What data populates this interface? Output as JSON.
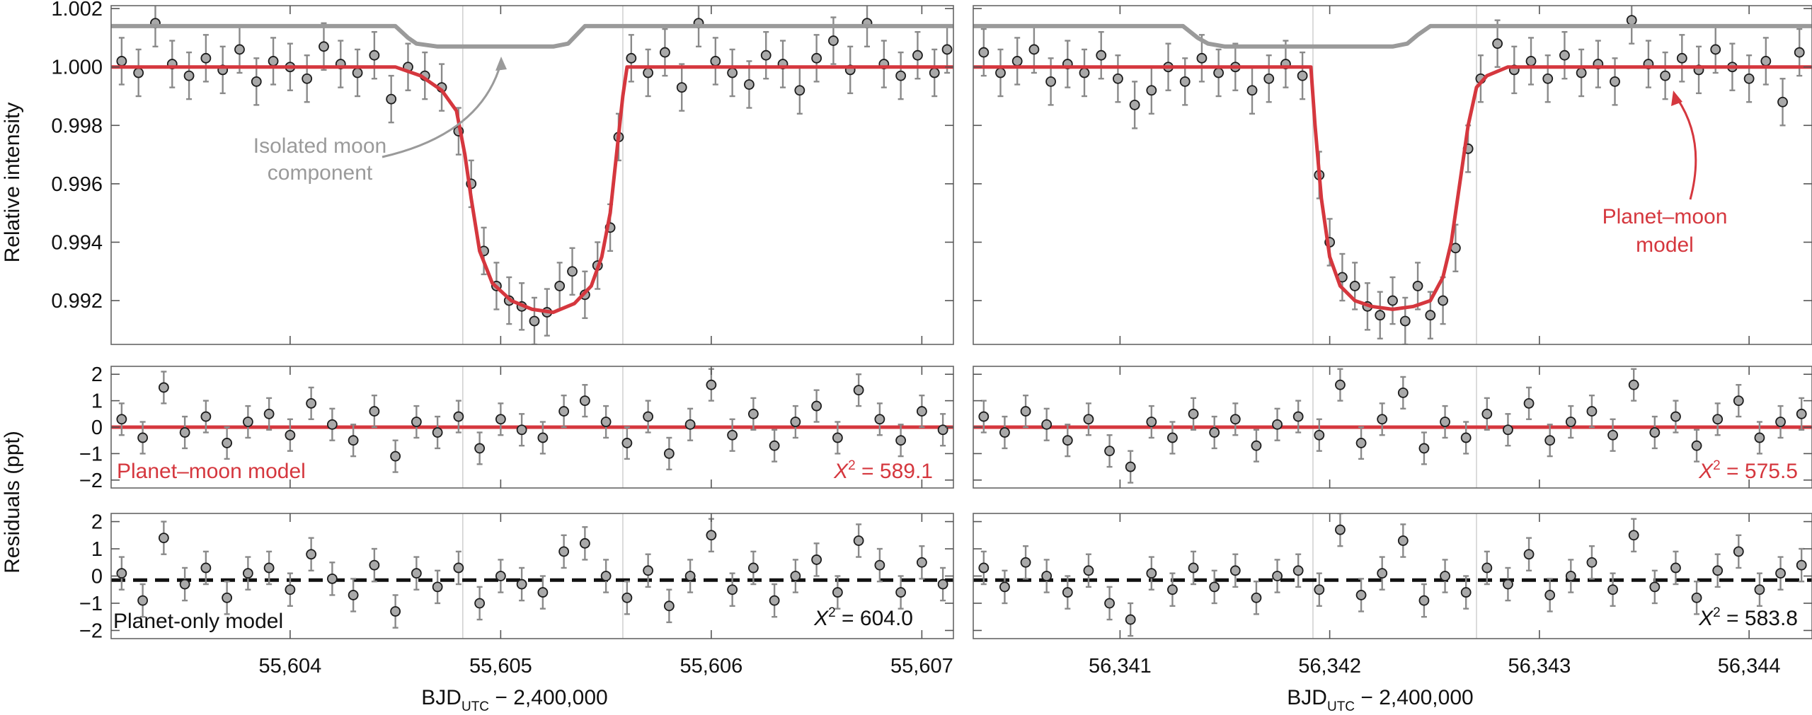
{
  "figure": {
    "ylabel_top": "Relative intensity",
    "ylabel_bottom": "Residuals (ppt)",
    "xlabel_main": "BJD",
    "xlabel_sub": "UTC",
    "xlabel_rest": " − 2,400,000"
  },
  "annotations": {
    "moon_line1": "Isolated moon",
    "moon_line2": "component",
    "model_line1": "Planet–moon",
    "model_line2": "model",
    "planet_moon_label": "Planet–moon model",
    "planet_only_label": "Planet-only model",
    "chi_sym": "X",
    "chi_sup": "2"
  },
  "colors": {
    "model": "#d5373e",
    "moon": "#9a9a9a",
    "points": "#a9a9a9",
    "errorbars": "#8a8a8a",
    "planet_only": "#111111"
  },
  "chart_data": [
    {
      "type": "scatter",
      "panel": "left",
      "xlabel": "BJD_UTC − 2,400,000",
      "xlim": [
        55603.15,
        55607.15
      ],
      "x_ticks": [
        "55,604",
        "55,605",
        "55,606",
        "55,607"
      ],
      "x_tick_values": [
        55604,
        55605,
        55606,
        55607
      ],
      "transit_window": [
        55604.82,
        55605.58
      ],
      "top": {
        "ylabel": "Relative intensity",
        "ylim": [
          0.9905,
          1.0021
        ],
        "y_ticks": [
          "0.992",
          "0.994",
          "0.996",
          "0.998",
          "1.000",
          "1.002"
        ],
        "y_tick_values": [
          0.992,
          0.994,
          0.996,
          0.998,
          1.0,
          1.002
        ],
        "planet_moon_model": {
          "x": [
            55603.15,
            55604.5,
            55604.62,
            55604.72,
            55604.79,
            55604.83,
            55604.86,
            55604.9,
            55604.96,
            55605.05,
            55605.15,
            55605.25,
            55605.35,
            55605.43,
            55605.48,
            55605.52,
            55605.55,
            55605.58,
            55605.6,
            55607.15
          ],
          "y": [
            1.0,
            1.0,
            0.9997,
            0.9992,
            0.9985,
            0.997,
            0.9955,
            0.9937,
            0.9926,
            0.992,
            0.9917,
            0.9916,
            0.9919,
            0.9925,
            0.9935,
            0.995,
            0.997,
            0.999,
            1.0,
            1.0
          ]
        },
        "moon_component": {
          "x": [
            55603.15,
            55604.5,
            55604.56,
            55604.6,
            55604.7,
            55605.0,
            55605.25,
            55605.32,
            55605.36,
            55605.4,
            55607.15
          ],
          "y": [
            1.0014,
            1.0014,
            1.001,
            1.0008,
            1.0007,
            1.0007,
            1.0007,
            1.0008,
            1.0011,
            1.0014,
            1.0014
          ]
        },
        "data": {
          "x": [
            55603.2,
            55603.28,
            55603.36,
            55603.44,
            55603.52,
            55603.6,
            55603.68,
            55603.76,
            55603.84,
            55603.92,
            55604.0,
            55604.08,
            55604.16,
            55604.24,
            55604.32,
            55604.4,
            55604.48,
            55604.56,
            55604.64,
            55604.72,
            55604.8,
            55604.86,
            55604.92,
            55604.98,
            55605.04,
            55605.1,
            55605.16,
            55605.22,
            55605.28,
            55605.34,
            55605.4,
            55605.46,
            55605.52,
            55605.56,
            55605.62,
            55605.7,
            55605.78,
            55605.86,
            55605.94,
            55606.02,
            55606.1,
            55606.18,
            55606.26,
            55606.34,
            55606.42,
            55606.5,
            55606.58,
            55606.66,
            55606.74,
            55606.82,
            55606.9,
            55606.98,
            55607.06,
            55607.12
          ],
          "y": [
            1.0002,
            0.9998,
            1.0015,
            1.0001,
            0.9997,
            1.0003,
            0.9999,
            1.0006,
            0.9995,
            1.0002,
            1.0,
            0.9996,
            1.0007,
            1.0001,
            0.9998,
            1.0004,
            0.9989,
            1.0,
            0.9997,
            0.9993,
            0.9978,
            0.996,
            0.9937,
            0.9925,
            0.992,
            0.9918,
            0.9913,
            0.9916,
            0.9925,
            0.993,
            0.9922,
            0.9932,
            0.9945,
            0.9976,
            1.0003,
            0.9998,
            1.0005,
            0.9993,
            1.0015,
            1.0002,
            0.9998,
            0.9994,
            1.0004,
            1.0001,
            0.9992,
            1.0003,
            1.0009,
            0.9999,
            1.0015,
            1.0001,
            0.9997,
            1.0004,
            0.9998,
            1.0006
          ],
          "yerr": 0.0008
        }
      },
      "planet_moon_residuals": {
        "ylabel": "Residuals (ppt)",
        "ylim": [
          -2.3,
          2.3
        ],
        "y_ticks": [
          "−2",
          "−1",
          "0",
          "1",
          "2"
        ],
        "y_tick_values": [
          -2,
          -1,
          0,
          1,
          2
        ],
        "chi2": "589.1",
        "data": {
          "x": [
            55603.2,
            55603.3,
            55603.4,
            55603.5,
            55603.6,
            55603.7,
            55603.8,
            55603.9,
            55604.0,
            55604.1,
            55604.2,
            55604.3,
            55604.4,
            55604.5,
            55604.6,
            55604.7,
            55604.8,
            55604.9,
            55605.0,
            55605.1,
            55605.2,
            55605.3,
            55605.4,
            55605.5,
            55605.6,
            55605.7,
            55605.8,
            55605.9,
            55606.0,
            55606.1,
            55606.2,
            55606.3,
            55606.4,
            55606.5,
            55606.6,
            55606.7,
            55606.8,
            55606.9,
            55607.0,
            55607.1
          ],
          "y": [
            0.3,
            -0.4,
            1.5,
            -0.2,
            0.4,
            -0.6,
            0.2,
            0.5,
            -0.3,
            0.9,
            0.1,
            -0.5,
            0.6,
            -1.1,
            0.2,
            -0.2,
            0.4,
            -0.8,
            0.3,
            -0.1,
            -0.4,
            0.6,
            1.0,
            0.2,
            -0.6,
            0.4,
            -1.0,
            0.1,
            1.6,
            -0.3,
            0.5,
            -0.7,
            0.2,
            0.8,
            -0.4,
            1.4,
            0.3,
            -0.5,
            0.6,
            -0.1
          ],
          "yerr": 0.6
        }
      },
      "planet_only_residuals": {
        "ylabel": "Residuals (ppt)",
        "ylim": [
          -2.3,
          2.3
        ],
        "y_ticks": [
          "−2",
          "−1",
          "0",
          "1",
          "2"
        ],
        "y_tick_values": [
          -2,
          -1,
          0,
          1,
          2
        ],
        "zero_offset": -0.15,
        "chi2": "604.0",
        "data": {
          "x": [
            55603.2,
            55603.3,
            55603.4,
            55603.5,
            55603.6,
            55603.7,
            55603.8,
            55603.9,
            55604.0,
            55604.1,
            55604.2,
            55604.3,
            55604.4,
            55604.5,
            55604.6,
            55604.7,
            55604.8,
            55604.9,
            55605.0,
            55605.1,
            55605.2,
            55605.3,
            55605.4,
            55605.5,
            55605.6,
            55605.7,
            55605.8,
            55605.9,
            55606.0,
            55606.1,
            55606.2,
            55606.3,
            55606.4,
            55606.5,
            55606.6,
            55606.7,
            55606.8,
            55606.9,
            55607.0,
            55607.1
          ],
          "y": [
            0.1,
            -0.9,
            1.4,
            -0.3,
            0.3,
            -0.8,
            0.1,
            0.3,
            -0.5,
            0.8,
            -0.1,
            -0.7,
            0.4,
            -1.3,
            0.1,
            -0.4,
            0.3,
            -1.0,
            0.0,
            -0.3,
            -0.6,
            0.9,
            1.2,
            0.0,
            -0.8,
            0.2,
            -1.1,
            0.0,
            1.5,
            -0.5,
            0.3,
            -0.9,
            0.0,
            0.6,
            -0.6,
            1.3,
            0.4,
            -0.6,
            0.5,
            -0.3
          ],
          "yerr": 0.6
        }
      }
    },
    {
      "type": "scatter",
      "panel": "right",
      "xlabel": "BJD_UTC − 2,400,000",
      "xlim": [
        56340.3,
        56344.3
      ],
      "x_ticks": [
        "56,341",
        "56,342",
        "56,343",
        "56,344"
      ],
      "x_tick_values": [
        56341,
        56342,
        56343,
        56344
      ],
      "transit_window": [
        56341.92,
        56342.7
      ],
      "top": {
        "ylabel": "Relative intensity",
        "ylim": [
          0.9905,
          1.0021
        ],
        "y_ticks": [
          "0.992",
          "0.994",
          "0.996",
          "0.998",
          "1.000",
          "1.002"
        ],
        "y_tick_values": [
          0.992,
          0.994,
          0.996,
          0.998,
          1.0,
          1.002
        ],
        "planet_moon_model": {
          "x": [
            56340.3,
            56341.91,
            56341.93,
            56341.96,
            56342.0,
            56342.05,
            56342.12,
            56342.2,
            56342.3,
            56342.4,
            56342.48,
            56342.54,
            56342.58,
            56342.62,
            56342.66,
            56342.7,
            56342.75,
            56342.85,
            56344.3
          ],
          "y": [
            1.0,
            1.0,
            0.998,
            0.9955,
            0.9935,
            0.9925,
            0.992,
            0.9918,
            0.9917,
            0.9918,
            0.992,
            0.9928,
            0.994,
            0.996,
            0.998,
            0.9993,
            0.9997,
            1.0,
            1.0
          ]
        },
        "moon_component": {
          "x": [
            56340.3,
            56341.3,
            56341.37,
            56341.42,
            56341.5,
            56341.9,
            56342.2,
            56342.3,
            56342.37,
            56342.42,
            56342.48,
            56344.3
          ],
          "y": [
            1.0014,
            1.0014,
            1.001,
            1.0008,
            1.0007,
            1.0007,
            1.0007,
            1.0007,
            1.0008,
            1.0011,
            1.0014,
            1.0014
          ]
        },
        "data": {
          "x": [
            56340.35,
            56340.43,
            56340.51,
            56340.59,
            56340.67,
            56340.75,
            56340.83,
            56340.91,
            56340.99,
            56341.07,
            56341.15,
            56341.23,
            56341.31,
            56341.39,
            56341.47,
            56341.55,
            56341.63,
            56341.71,
            56341.79,
            56341.87,
            56341.95,
            56342.0,
            56342.06,
            56342.12,
            56342.18,
            56342.24,
            56342.3,
            56342.36,
            56342.42,
            56342.48,
            56342.54,
            56342.6,
            56342.66,
            56342.72,
            56342.8,
            56342.88,
            56342.96,
            56343.04,
            56343.12,
            56343.2,
            56343.28,
            56343.36,
            56343.44,
            56343.52,
            56343.6,
            56343.68,
            56343.76,
            56343.84,
            56343.92,
            56344.0,
            56344.08,
            56344.16,
            56344.24
          ],
          "y": [
            1.0005,
            0.9998,
            1.0002,
            1.0006,
            0.9995,
            1.0001,
            0.9998,
            1.0004,
            0.9996,
            0.9987,
            0.9992,
            1.0,
            0.9995,
            1.0003,
            0.9998,
            1.0,
            0.9992,
            0.9996,
            1.0001,
            0.9997,
            0.9963,
            0.994,
            0.9928,
            0.9925,
            0.9918,
            0.9915,
            0.992,
            0.9913,
            0.9925,
            0.9915,
            0.992,
            0.9938,
            0.9972,
            0.9996,
            1.0008,
            0.9999,
            1.0002,
            0.9996,
            1.0004,
            0.9998,
            1.0001,
            0.9995,
            1.0016,
            1.0001,
            0.9997,
            1.0003,
            0.9999,
            1.0006,
            1.0,
            0.9996,
            1.0002,
            0.9988,
            1.0005
          ],
          "yerr": 0.0008
        }
      },
      "planet_moon_residuals": {
        "ylabel": "Residuals (ppt)",
        "ylim": [
          -2.3,
          2.3
        ],
        "y_ticks": [
          "−2",
          "−1",
          "0",
          "1",
          "2"
        ],
        "y_tick_values": [
          -2,
          -1,
          0,
          1,
          2
        ],
        "chi2": "575.5",
        "data": {
          "x": [
            56340.35,
            56340.45,
            56340.55,
            56340.65,
            56340.75,
            56340.85,
            56340.95,
            56341.05,
            56341.15,
            56341.25,
            56341.35,
            56341.45,
            56341.55,
            56341.65,
            56341.75,
            56341.85,
            56341.95,
            56342.05,
            56342.15,
            56342.25,
            56342.35,
            56342.45,
            56342.55,
            56342.65,
            56342.75,
            56342.85,
            56342.95,
            56343.05,
            56343.15,
            56343.25,
            56343.35,
            56343.45,
            56343.55,
            56343.65,
            56343.75,
            56343.85,
            56343.95,
            56344.05,
            56344.15,
            56344.25
          ],
          "y": [
            0.4,
            -0.2,
            0.6,
            0.1,
            -0.5,
            0.3,
            -0.9,
            -1.5,
            0.2,
            -0.4,
            0.5,
            -0.2,
            0.3,
            -0.7,
            0.1,
            0.4,
            -0.3,
            1.6,
            -0.6,
            0.3,
            1.3,
            -0.8,
            0.2,
            -0.4,
            0.5,
            -0.1,
            0.9,
            -0.5,
            0.2,
            0.6,
            -0.3,
            1.6,
            -0.2,
            0.4,
            -0.7,
            0.3,
            1.0,
            -0.4,
            0.2,
            0.5
          ],
          "yerr": 0.6
        }
      },
      "planet_only_residuals": {
        "ylabel": "Residuals (ppt)",
        "ylim": [
          -2.3,
          2.3
        ],
        "y_ticks": [
          "−2",
          "−1",
          "0",
          "1",
          "2"
        ],
        "y_tick_values": [
          -2,
          -1,
          0,
          1,
          2
        ],
        "zero_offset": -0.15,
        "chi2": "583.8",
        "data": {
          "x": [
            56340.35,
            56340.45,
            56340.55,
            56340.65,
            56340.75,
            56340.85,
            56340.95,
            56341.05,
            56341.15,
            56341.25,
            56341.35,
            56341.45,
            56341.55,
            56341.65,
            56341.75,
            56341.85,
            56341.95,
            56342.05,
            56342.15,
            56342.25,
            56342.35,
            56342.45,
            56342.55,
            56342.65,
            56342.75,
            56342.85,
            56342.95,
            56343.05,
            56343.15,
            56343.25,
            56343.35,
            56343.45,
            56343.55,
            56343.65,
            56343.75,
            56343.85,
            56343.95,
            56344.05,
            56344.15,
            56344.25
          ],
          "y": [
            0.3,
            -0.4,
            0.5,
            0.0,
            -0.6,
            0.2,
            -1.0,
            -1.6,
            0.1,
            -0.5,
            0.3,
            -0.4,
            0.2,
            -0.8,
            0.0,
            0.2,
            -0.5,
            1.7,
            -0.7,
            0.1,
            1.3,
            -0.9,
            0.0,
            -0.6,
            0.3,
            -0.3,
            0.8,
            -0.7,
            0.0,
            0.5,
            -0.5,
            1.5,
            -0.4,
            0.3,
            -0.8,
            0.2,
            0.9,
            -0.5,
            0.1,
            0.4
          ],
          "yerr": 0.6
        }
      }
    }
  ]
}
